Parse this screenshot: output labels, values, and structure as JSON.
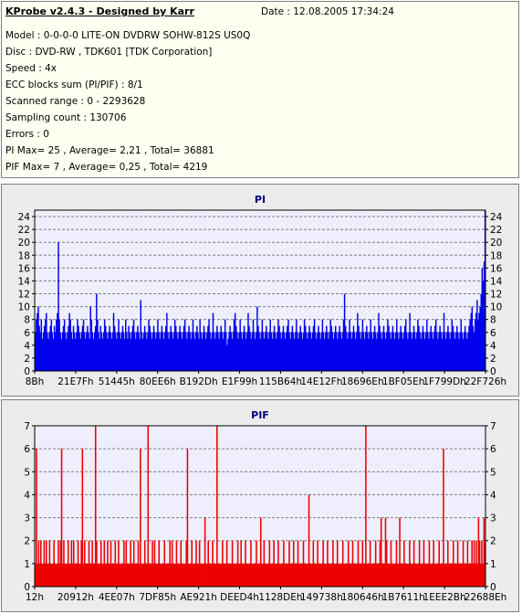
{
  "header": {
    "app_title": "KProbe v2.4.3 - Designed by Karr",
    "date": "Date : 12.08.2005 17:34:24",
    "lines": [
      "Model : 0-0-0-0 LITE-ON DVDRW SOHW-812S  US0Q",
      "Disc : DVD-RW , TDK601 [TDK Corporation]",
      "Speed : 4x",
      "ECC blocks sum (PI/PIF) : 8/1",
      "Scanned range : 0 - 2293628",
      "Sampling count : 130706",
      "Errors : 0",
      "PI Max= 25 , Average= 2,21 , Total= 36881",
      "PIF Max= 7 , Average= 0,25 , Total= 4219"
    ]
  },
  "colors": {
    "pi_bar": "#0000ee",
    "pif_bar": "#ee0000",
    "plot_bg": "#eeeefc",
    "grid": "#808080",
    "panel_bg": "#ececec",
    "title_text": "#00007a"
  },
  "chart_data": [
    {
      "type": "bar",
      "title": "PI",
      "xlabel": "",
      "ylabel": "",
      "ylim": [
        0,
        25
      ],
      "yticks": [
        0,
        2,
        4,
        6,
        8,
        10,
        12,
        14,
        16,
        18,
        20,
        22,
        24
      ],
      "x_tick_labels": [
        "8Bh",
        "21E7Fh",
        "51445h",
        "80EE6h",
        "B192Dh",
        "E1F99h",
        "115B64h",
        "14E12Fh",
        "18696Eh",
        "1BF05Eh",
        "1F799Dh",
        "22F726h"
      ],
      "grid": true,
      "series": [
        {
          "values": [
            6,
            8,
            9,
            10,
            7,
            6,
            8,
            5,
            6,
            7,
            8,
            9,
            6,
            5,
            6,
            7,
            8,
            6,
            5,
            7,
            6,
            8,
            9,
            20,
            8,
            6,
            5,
            6,
            7,
            8,
            6,
            5,
            6,
            7,
            9,
            8,
            6,
            5,
            7,
            6,
            5,
            6,
            8,
            7,
            6,
            5,
            6,
            7,
            8,
            6,
            5,
            6,
            7,
            6,
            5,
            10,
            8,
            6,
            5,
            6,
            7,
            12,
            8,
            6,
            5,
            7,
            6,
            5,
            6,
            8,
            7,
            6,
            5,
            6,
            7,
            6,
            5,
            6,
            9,
            7,
            6,
            5,
            6,
            8,
            6,
            5,
            6,
            7,
            6,
            5,
            8,
            6,
            5,
            7,
            6,
            5,
            6,
            7,
            8,
            6,
            5,
            6,
            7,
            6,
            5,
            11,
            6,
            5,
            6,
            7,
            6,
            5,
            6,
            8,
            7,
            6,
            5,
            6,
            7,
            6,
            5,
            6,
            8,
            6,
            5,
            6,
            7,
            6,
            5,
            6,
            7,
            9,
            6,
            5,
            6,
            7,
            6,
            5,
            6,
            8,
            7,
            6,
            5,
            6,
            7,
            6,
            5,
            6,
            7,
            8,
            6,
            5,
            6,
            7,
            6,
            5,
            6,
            8,
            6,
            5,
            6,
            7,
            6,
            5,
            8,
            6,
            5,
            6,
            7,
            6,
            5,
            6,
            7,
            8,
            6,
            5,
            6,
            9,
            6,
            5,
            6,
            7,
            6,
            5,
            6,
            7,
            6,
            5,
            6,
            8,
            6,
            4,
            5,
            6,
            7,
            6,
            5,
            6,
            8,
            9,
            7,
            6,
            5,
            6,
            8,
            6,
            5,
            6,
            7,
            6,
            5,
            6,
            9,
            7,
            6,
            5,
            6,
            8,
            6,
            5,
            6,
            10,
            7,
            6,
            5,
            6,
            8,
            6,
            5,
            6,
            7,
            6,
            5,
            6,
            8,
            6,
            5,
            6,
            7,
            6,
            5,
            6,
            8,
            7,
            6,
            5,
            6,
            7,
            6,
            5,
            6,
            7,
            8,
            6,
            5,
            6,
            7,
            6,
            5,
            6,
            8,
            6,
            5,
            6,
            7,
            6,
            5,
            6,
            8,
            7,
            6,
            5,
            6,
            7,
            6,
            5,
            6,
            7,
            8,
            6,
            5,
            6,
            7,
            6,
            5,
            6,
            8,
            6,
            5,
            6,
            7,
            6,
            5,
            6,
            8,
            7,
            6,
            5,
            6,
            7,
            6,
            5,
            6,
            7,
            6,
            5,
            6,
            8,
            12,
            7,
            6,
            5,
            6,
            8,
            6,
            5,
            6,
            7,
            6,
            5,
            6,
            9,
            7,
            6,
            5,
            6,
            8,
            6,
            5,
            6,
            7,
            6,
            5,
            6,
            8,
            6,
            5,
            6,
            7,
            6,
            5,
            6,
            9,
            7,
            6,
            5,
            6,
            7,
            6,
            5,
            6,
            8,
            7,
            6,
            5,
            6,
            7,
            6,
            5,
            6,
            8,
            6,
            5,
            6,
            7,
            6,
            5,
            6,
            7,
            8,
            6,
            5,
            6,
            9,
            6,
            5,
            6,
            7,
            6,
            5,
            6,
            8,
            7,
            6,
            5,
            6,
            7,
            6,
            5,
            6,
            8,
            6,
            5,
            6,
            7,
            6,
            5,
            6,
            7,
            8,
            6,
            5,
            6,
            7,
            6,
            5,
            6,
            9,
            6,
            5,
            6,
            7,
            6,
            5,
            6,
            8,
            7,
            6,
            5,
            6,
            7,
            6,
            5,
            6,
            8,
            6,
            5,
            6,
            7,
            6,
            5,
            6,
            7,
            8,
            9,
            10,
            7,
            6,
            8,
            9,
            11,
            8,
            9,
            10,
            12,
            16,
            14,
            17,
            25
          ]
        }
      ]
    },
    {
      "type": "bar",
      "title": "PIF",
      "xlabel": "",
      "ylabel": "",
      "ylim": [
        0,
        7
      ],
      "yticks": [
        0,
        1,
        2,
        3,
        4,
        5,
        6,
        7
      ],
      "x_tick_labels": [
        "12h",
        "20912h",
        "4EE07h",
        "7DF85h",
        "AE921h",
        "DEED4h",
        "1128DEh",
        "149738h",
        "180646h",
        "1B7611h",
        "1EEE2Bh",
        "22688Eh"
      ],
      "grid": true,
      "series": [
        {
          "values": [
            1,
            6,
            1,
            2,
            1,
            2,
            1,
            1,
            2,
            1,
            2,
            1,
            1,
            2,
            1,
            1,
            1,
            2,
            1,
            1,
            1,
            2,
            1,
            2,
            6,
            1,
            2,
            1,
            1,
            1,
            2,
            1,
            1,
            2,
            1,
            2,
            1,
            1,
            1,
            2,
            1,
            1,
            2,
            6,
            1,
            2,
            1,
            1,
            1,
            2,
            1,
            1,
            2,
            1,
            1,
            7,
            2,
            1,
            1,
            1,
            2,
            1,
            1,
            2,
            1,
            1,
            2,
            1,
            1,
            2,
            1,
            1,
            1,
            2,
            1,
            1,
            2,
            1,
            1,
            1,
            1,
            2,
            1,
            2,
            1,
            1,
            1,
            2,
            1,
            1,
            2,
            1,
            1,
            1,
            2,
            1,
            6,
            1,
            1,
            1,
            2,
            1,
            1,
            7,
            1,
            1,
            1,
            2,
            1,
            2,
            1,
            1,
            1,
            2,
            1,
            1,
            1,
            1,
            2,
            1,
            1,
            1,
            1,
            2,
            1,
            2,
            1,
            1,
            1,
            2,
            1,
            1,
            1,
            2,
            1,
            1,
            1,
            1,
            2,
            6,
            1,
            1,
            1,
            2,
            1,
            1,
            1,
            2,
            1,
            1,
            2,
            1,
            1,
            1,
            1,
            3,
            1,
            1,
            2,
            1,
            1,
            1,
            2,
            1,
            1,
            1,
            7,
            1,
            1,
            1,
            1,
            2,
            1,
            1,
            1,
            2,
            1,
            1,
            1,
            1,
            2,
            1,
            1,
            1,
            1,
            2,
            1,
            1,
            2,
            1,
            1,
            1,
            2,
            1,
            1,
            1,
            1,
            2,
            1,
            1,
            1,
            1,
            2,
            1,
            1,
            1,
            3,
            1,
            1,
            2,
            1,
            1,
            1,
            1,
            2,
            1,
            1,
            1,
            2,
            1,
            1,
            1,
            2,
            1,
            1,
            1,
            1,
            2,
            1,
            1,
            1,
            1,
            2,
            1,
            1,
            1,
            2,
            1,
            1,
            1,
            2,
            1,
            1,
            1,
            1,
            2,
            1,
            1,
            1,
            1,
            4,
            1,
            1,
            1,
            2,
            1,
            1,
            1,
            2,
            1,
            1,
            1,
            1,
            2,
            1,
            1,
            1,
            2,
            1,
            1,
            1,
            1,
            2,
            1,
            1,
            1,
            2,
            1,
            1,
            1,
            1,
            2,
            1,
            1,
            1,
            1,
            2,
            1,
            1,
            1,
            2,
            1,
            1,
            1,
            1,
            2,
            1,
            1,
            1,
            2,
            1,
            1,
            7,
            1,
            1,
            1,
            2,
            1,
            1,
            1,
            1,
            2,
            1,
            1,
            1,
            2,
            3,
            1,
            1,
            1,
            3,
            2,
            1,
            1,
            1,
            2,
            1,
            1,
            1,
            1,
            2,
            1,
            1,
            3,
            1,
            1,
            1,
            2,
            1,
            1,
            1,
            1,
            2,
            1,
            1,
            1,
            2,
            1,
            1,
            1,
            1,
            2,
            1,
            1,
            1,
            2,
            1,
            1,
            1,
            1,
            2,
            1,
            1,
            1,
            2,
            1,
            1,
            1,
            1,
            2,
            1,
            1,
            1,
            6,
            1,
            1,
            1,
            2,
            1,
            1,
            1,
            1,
            2,
            1,
            1,
            1,
            2,
            1,
            1,
            1,
            1,
            2,
            1,
            1,
            1,
            2,
            1,
            1,
            1,
            2,
            1,
            2,
            1,
            2,
            1,
            3,
            2,
            1,
            2,
            1,
            3,
            2
          ]
        }
      ]
    }
  ]
}
